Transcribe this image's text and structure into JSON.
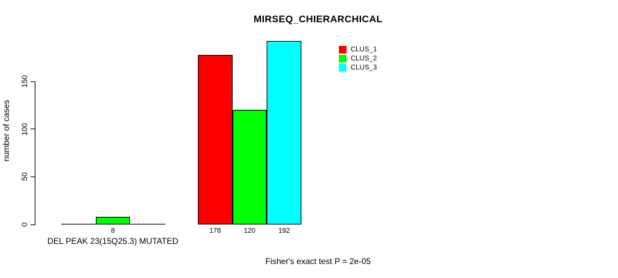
{
  "chart_data": {
    "type": "bar",
    "title": "MIRSEQ_CHIERARCHICAL",
    "ylabel": "number of cases",
    "xlabel": "DEL PEAK 23(15Q25.3) MUTATED",
    "annotation": "Fisher's exact test P = 2e-05",
    "yticks": [
      0,
      50,
      100,
      150
    ],
    "ylim": [
      0,
      196
    ],
    "grid": false,
    "legend_position": "top-right",
    "categories": [
      "DEL PEAK 23(15Q25.3) MUTATED",
      ""
    ],
    "series": [
      {
        "name": "CLUS_1",
        "color": "#ff0000",
        "values": [
          0,
          178
        ]
      },
      {
        "name": "CLUS_2",
        "color": "#00ff00",
        "values": [
          8,
          120
        ]
      },
      {
        "name": "CLUS_3",
        "color": "#00ffff",
        "values": [
          0,
          192
        ]
      }
    ],
    "visible_bar_labels": [
      "8",
      "178",
      "120",
      "192"
    ]
  },
  "colors": {
    "axis": "#000000",
    "background": "#ffffff"
  }
}
